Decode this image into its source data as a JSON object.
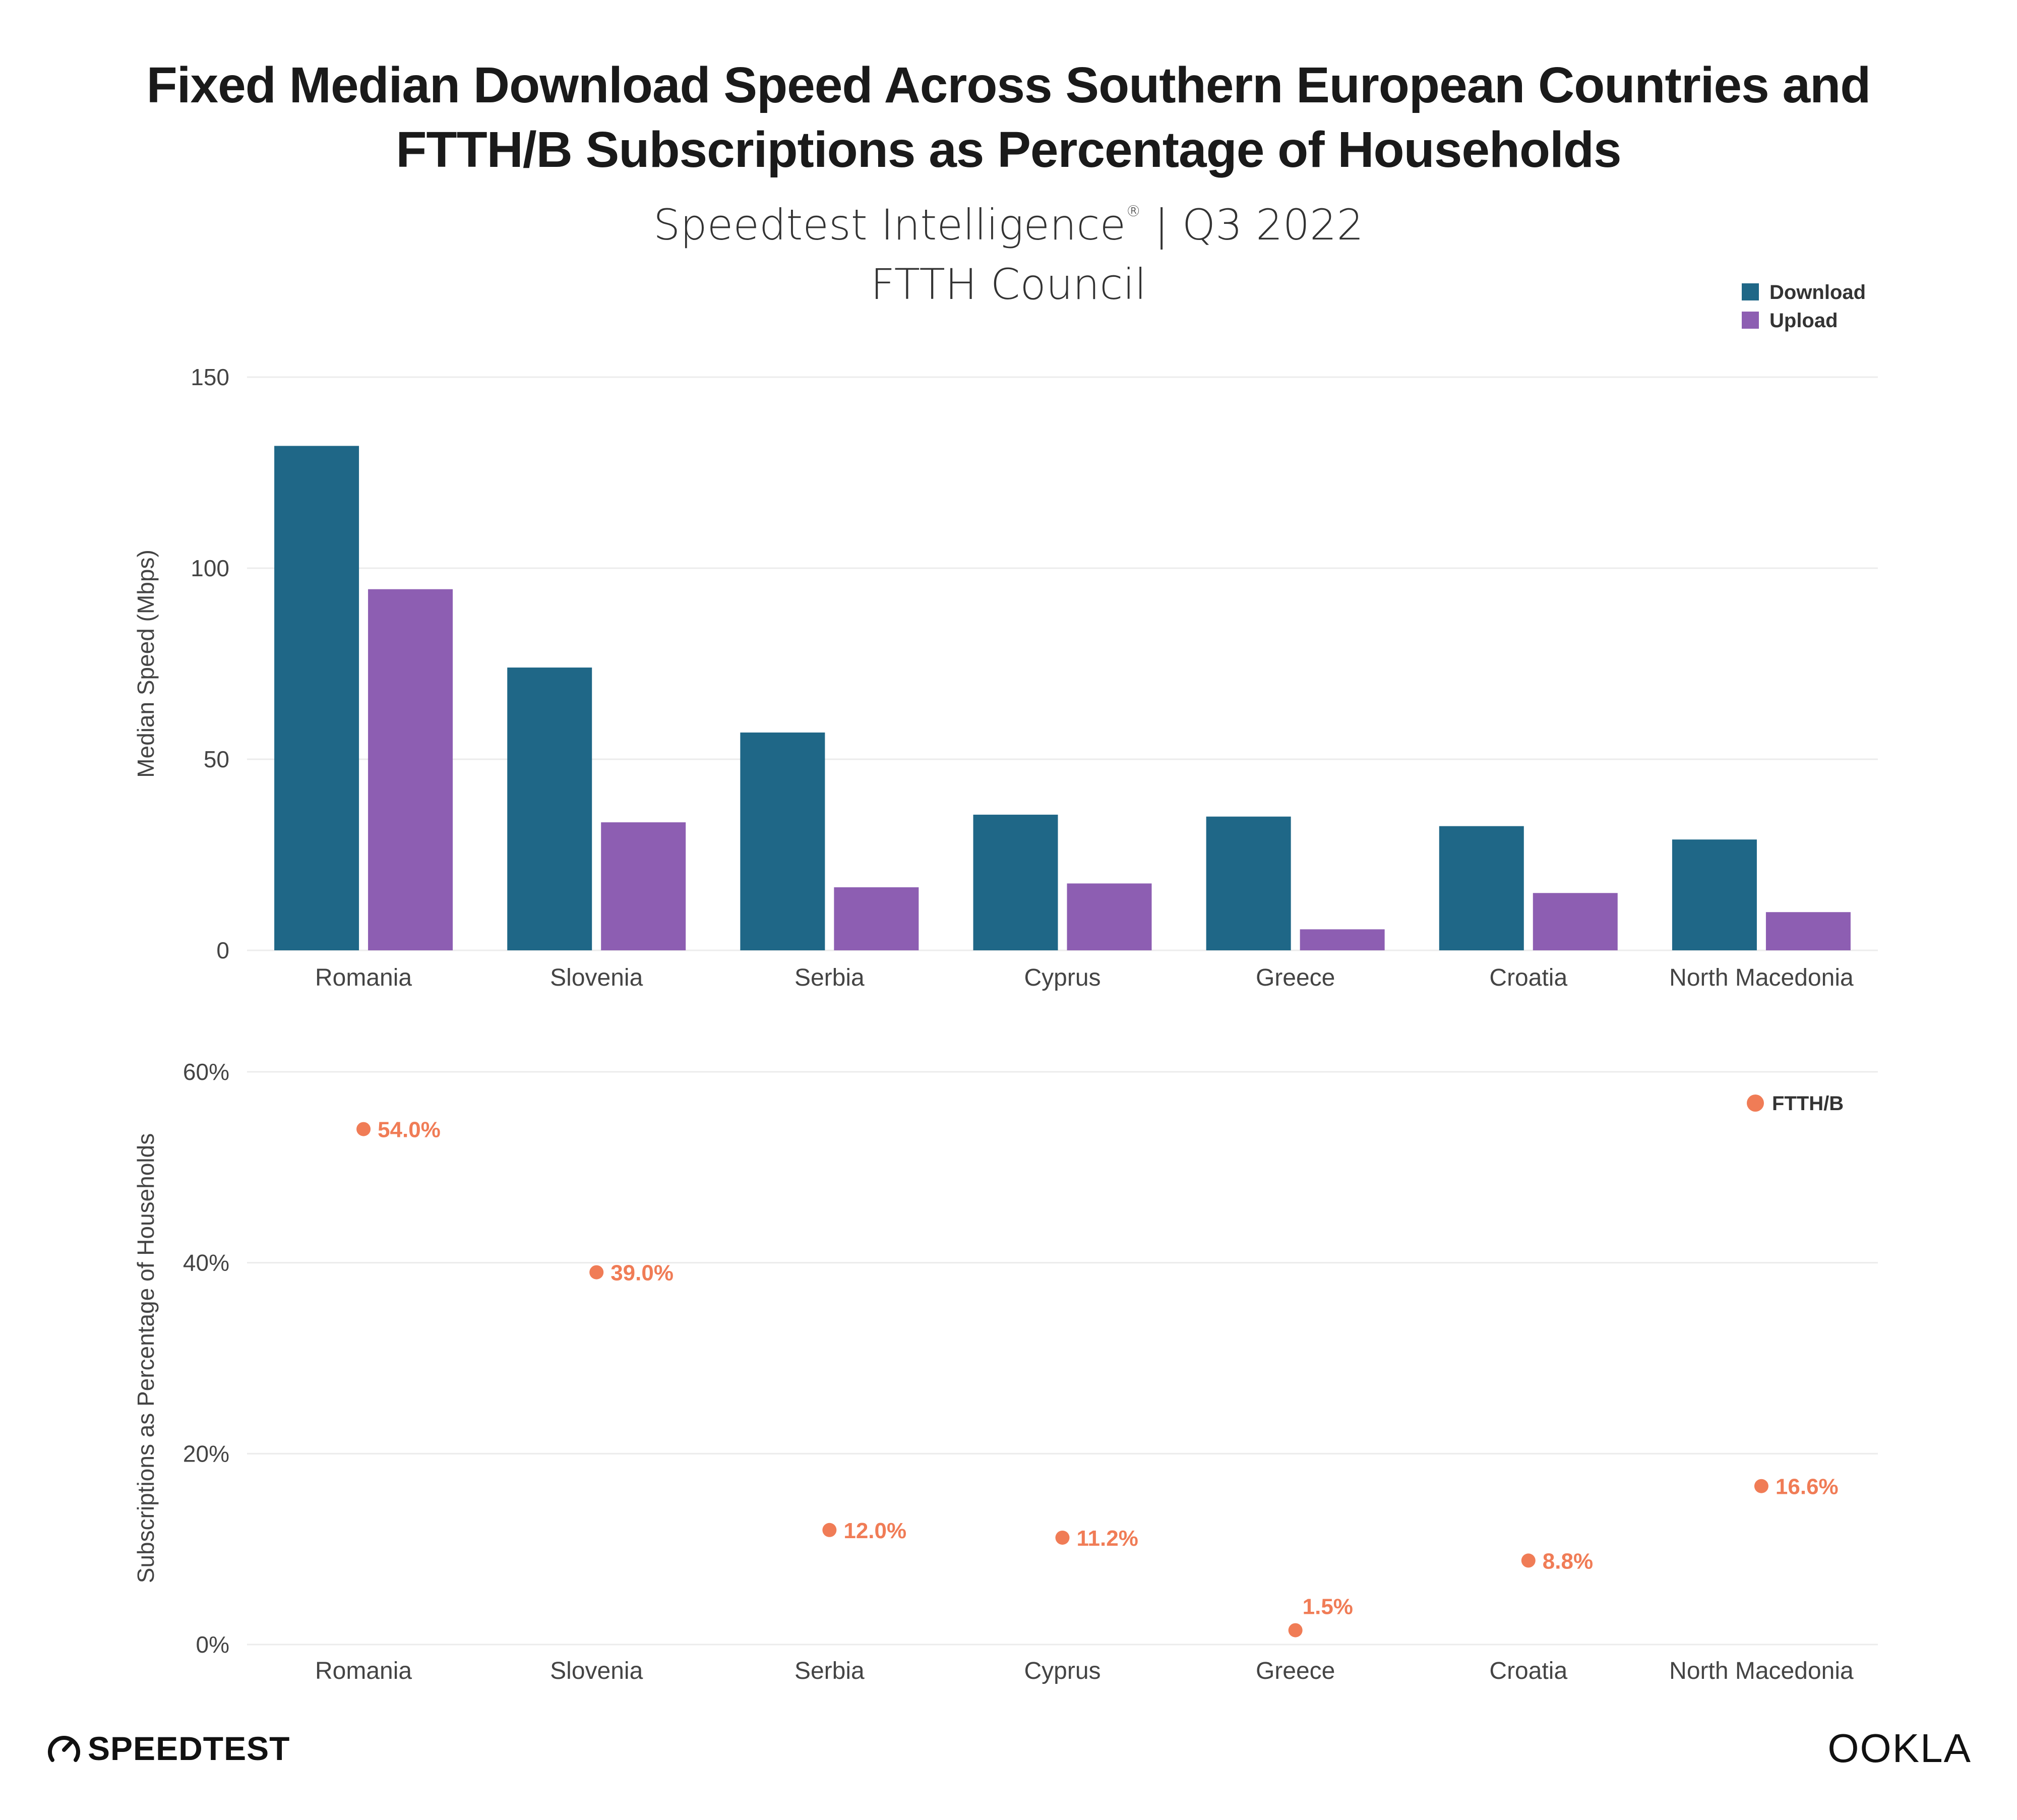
{
  "header": {
    "title_line1": "Fixed Median Download Speed Across Southern European Countries and",
    "title_line2": "FTTH/B Subscriptions as Percentage of Households",
    "subtitle_main": "Speedtest Intelligence",
    "subtitle_mark": "®",
    "subtitle_rest": " | Q3 2022",
    "source_line": "FTTH Council"
  },
  "footer": {
    "left_brand": "SPEEDTEST",
    "right_brand": "OOKLA"
  },
  "colors": {
    "download": "#1f6787",
    "upload": "#8d5eb2",
    "ftth": "#f07c56",
    "grid": "#ececec",
    "axis_text": "#444444"
  },
  "chart_data": [
    {
      "type": "bar",
      "categories": [
        "Romania",
        "Slovenia",
        "Serbia",
        "Cyprus",
        "Greece",
        "Croatia",
        "North Macedonia"
      ],
      "series": [
        {
          "name": "Download",
          "values": [
            132,
            74,
            57,
            35.5,
            35,
            32.5,
            29
          ]
        },
        {
          "name": "Upload",
          "values": [
            94.5,
            33.5,
            16.5,
            17.5,
            5.5,
            15,
            10
          ]
        }
      ],
      "ylabel": "Median Speed (Mbps)",
      "ylim": [
        0,
        150
      ],
      "yticks": [
        0,
        50,
        100,
        150
      ],
      "ytick_labels": [
        "0",
        "50",
        "100",
        "150"
      ],
      "legend": "top-right",
      "grid": true
    },
    {
      "type": "scatter",
      "categories": [
        "Romania",
        "Slovenia",
        "Serbia",
        "Cyprus",
        "Greece",
        "Croatia",
        "North Macedonia"
      ],
      "series": [
        {
          "name": "FTTH/B",
          "values": [
            54.0,
            39.0,
            12.0,
            11.2,
            1.5,
            8.8,
            16.6
          ],
          "labels": [
            "54.0%",
            "39.0%",
            "12.0%",
            "11.2%",
            "1.5%",
            "8.8%",
            "16.6%"
          ]
        }
      ],
      "ylabel": "Subscriptions as Percentage of Households",
      "ylim": [
        0,
        60
      ],
      "yticks": [
        0,
        20,
        40,
        60
      ],
      "ytick_labels": [
        "0%",
        "20%",
        "40%",
        "60%"
      ],
      "legend": "top-right",
      "grid": true
    }
  ]
}
